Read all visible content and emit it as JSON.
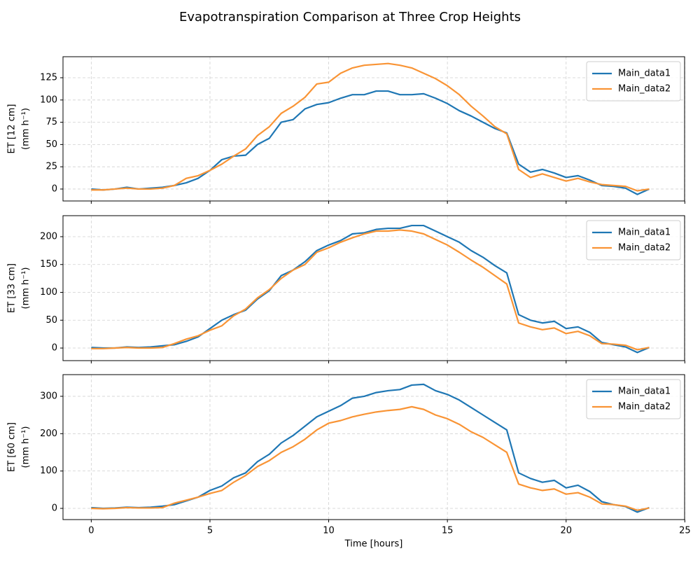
{
  "title": "Evapotranspiration Comparison at Three Crop Heights",
  "chart_data": [
    {
      "type": "line",
      "ylabel": [
        "ET [12 cm]",
        "(mm h⁻¹)"
      ],
      "x": [
        0,
        0.5,
        1,
        1.5,
        2,
        2.5,
        3,
        3.5,
        4,
        4.5,
        5,
        5.5,
        6,
        6.5,
        7,
        7.5,
        8,
        8.5,
        9,
        9.5,
        10,
        10.5,
        11,
        11.5,
        12,
        12.5,
        13,
        13.5,
        14,
        14.5,
        15,
        15.5,
        16,
        16.5,
        17,
        17.5,
        18,
        18.5,
        19,
        19.5,
        20,
        20.5,
        21,
        21.5,
        22,
        22.5,
        23,
        23.5
      ],
      "series": [
        {
          "name": "Main_data1",
          "color": "#1f77b4",
          "values": [
            0,
            -1,
            0,
            2,
            0,
            1,
            2,
            4,
            7,
            12,
            21,
            33,
            37,
            38,
            50,
            57,
            75,
            78,
            90,
            95,
            97,
            102,
            106,
            106,
            110,
            110,
            106,
            106,
            107,
            102,
            96,
            88,
            82,
            75,
            68,
            63,
            28,
            19,
            22,
            18,
            13,
            15,
            10,
            4,
            3,
            1,
            -6,
            0
          ]
        },
        {
          "name": "Main_data2",
          "color": "#f99435",
          "values": [
            -1,
            -1,
            0,
            1,
            0,
            0,
            1,
            4,
            12,
            15,
            21,
            28,
            37,
            45,
            60,
            70,
            85,
            93,
            103,
            118,
            120,
            130,
            136,
            139,
            140,
            141,
            139,
            136,
            130,
            124,
            116,
            106,
            93,
            82,
            70,
            62,
            22,
            13,
            17,
            13,
            9,
            12,
            8,
            5,
            4,
            3,
            -2,
            0
          ]
        }
      ],
      "xlim": [
        -1.19,
        24.99
      ],
      "xticks": [
        0,
        5,
        10,
        15,
        20,
        25
      ],
      "ylim": [
        -13.4,
        148.6
      ],
      "yticks": [
        0,
        25,
        50,
        75,
        100,
        125
      ],
      "grid": true,
      "legend": "upper right"
    },
    {
      "type": "line",
      "ylabel": [
        "ET [33 cm]",
        "(mm h⁻¹)"
      ],
      "x": [
        0,
        0.5,
        1,
        1.5,
        2,
        2.5,
        3,
        3.5,
        4,
        4.5,
        5,
        5.5,
        6,
        6.5,
        7,
        7.5,
        8,
        8.5,
        9,
        9.5,
        10,
        10.5,
        11,
        11.5,
        12,
        12.5,
        13,
        13.5,
        14,
        14.5,
        15,
        15.5,
        16,
        16.5,
        17,
        17.5,
        18,
        18.5,
        19,
        19.5,
        20,
        20.5,
        21,
        21.5,
        22,
        22.5,
        23,
        23.5
      ],
      "series": [
        {
          "name": "Main_data1",
          "color": "#1f77b4",
          "values": [
            1,
            0,
            0,
            2,
            1,
            2,
            4,
            6,
            12,
            20,
            35,
            50,
            60,
            68,
            88,
            103,
            130,
            140,
            155,
            175,
            185,
            193,
            205,
            207,
            213,
            215,
            215,
            220,
            220,
            210,
            200,
            190,
            175,
            163,
            148,
            135,
            60,
            50,
            45,
            48,
            35,
            38,
            28,
            10,
            6,
            2,
            -8,
            1
          ]
        },
        {
          "name": "Main_data2",
          "color": "#f99435",
          "values": [
            -1,
            -1,
            0,
            1,
            0,
            0,
            1,
            8,
            16,
            22,
            32,
            40,
            58,
            70,
            90,
            105,
            125,
            140,
            150,
            172,
            180,
            190,
            198,
            205,
            210,
            210,
            212,
            210,
            205,
            195,
            185,
            172,
            158,
            145,
            130,
            115,
            45,
            38,
            33,
            36,
            26,
            30,
            22,
            8,
            7,
            5,
            -3,
            1
          ]
        }
      ],
      "xlim": [
        -1.19,
        24.99
      ],
      "xticks": [
        0,
        5,
        10,
        15,
        20,
        25
      ],
      "ylim": [
        -22.6,
        237.7
      ],
      "yticks": [
        0,
        50,
        100,
        150,
        200
      ],
      "grid": true,
      "legend": "upper right"
    },
    {
      "type": "line",
      "ylabel": [
        "ET [60 cm]",
        "(mm h⁻¹)"
      ],
      "xlabel": "Time [hours]",
      "x": [
        0,
        0.5,
        1,
        1.5,
        2,
        2.5,
        3,
        3.5,
        4,
        4.5,
        5,
        5.5,
        6,
        6.5,
        7,
        7.5,
        8,
        8.5,
        9,
        9.5,
        10,
        10.5,
        11,
        11.5,
        12,
        12.5,
        13,
        13.5,
        14,
        14.5,
        15,
        15.5,
        16,
        16.5,
        17,
        17.5,
        18,
        18.5,
        19,
        19.5,
        20,
        20.5,
        21,
        21.5,
        22,
        22.5,
        23,
        23.5
      ],
      "series": [
        {
          "name": "Main_data1",
          "color": "#1f77b4",
          "values": [
            2,
            0,
            1,
            3,
            2,
            3,
            6,
            10,
            20,
            30,
            48,
            60,
            82,
            95,
            125,
            145,
            175,
            195,
            220,
            245,
            260,
            275,
            295,
            300,
            310,
            315,
            318,
            330,
            332,
            315,
            305,
            290,
            270,
            250,
            230,
            210,
            95,
            80,
            70,
            75,
            55,
            62,
            45,
            18,
            10,
            5,
            -10,
            2
          ]
        },
        {
          "name": "Main_data2",
          "color": "#f99435",
          "values": [
            0,
            -1,
            0,
            2,
            1,
            1,
            2,
            14,
            22,
            30,
            40,
            48,
            70,
            88,
            112,
            128,
            150,
            165,
            185,
            210,
            228,
            235,
            245,
            252,
            258,
            262,
            265,
            272,
            265,
            250,
            240,
            225,
            205,
            190,
            170,
            150,
            65,
            55,
            48,
            52,
            38,
            42,
            30,
            12,
            10,
            6,
            -5,
            1
          ]
        }
      ],
      "xlim": [
        -1.19,
        24.99
      ],
      "xticks": [
        0,
        5,
        10,
        15,
        20,
        25
      ],
      "ylim": [
        -30,
        358
      ],
      "yticks": [
        0,
        100,
        200,
        300
      ],
      "grid": true,
      "legend": "upper right"
    }
  ]
}
